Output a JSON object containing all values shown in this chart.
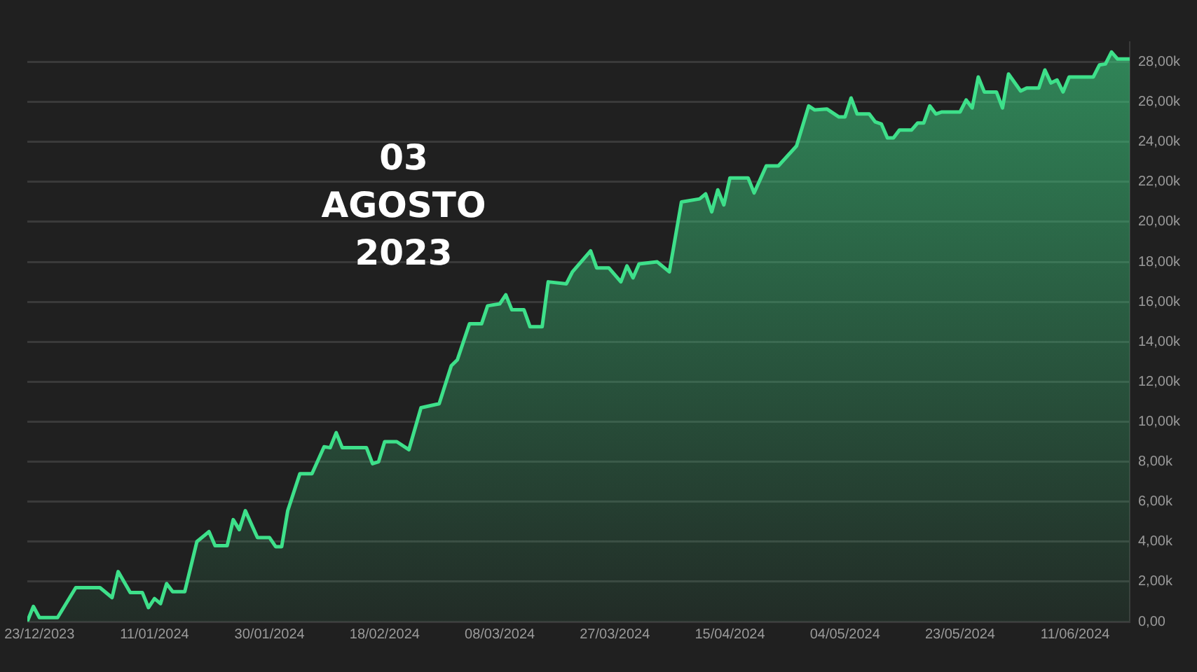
{
  "chart_data": {
    "type": "area",
    "annotations": [
      "03\nAGOSTO\n2023"
    ],
    "x": [
      "2023-12-21",
      "2023-12-22",
      "2023-12-23",
      "2023-12-26",
      "2023-12-29",
      "2024-01-02",
      "2024-01-04",
      "2024-01-05",
      "2024-01-07",
      "2024-01-09",
      "2024-01-10",
      "2024-01-11",
      "2024-01-12",
      "2024-01-13",
      "2024-01-14",
      "2024-01-16",
      "2024-01-18",
      "2024-01-20",
      "2024-01-21",
      "2024-01-23",
      "2024-01-24",
      "2024-01-25",
      "2024-01-26",
      "2024-01-28",
      "2024-01-30",
      "2024-01-31",
      "2024-02-01",
      "2024-02-02",
      "2024-02-04",
      "2024-02-06",
      "2024-02-08",
      "2024-02-09",
      "2024-02-10",
      "2024-02-11",
      "2024-02-15",
      "2024-02-16",
      "2024-02-17",
      "2024-02-18",
      "2024-02-20",
      "2024-02-22",
      "2024-02-24",
      "2024-02-27",
      "2024-02-29",
      "2024-03-01",
      "2024-03-03",
      "2024-03-05",
      "2024-03-06",
      "2024-03-08",
      "2024-03-09",
      "2024-03-10",
      "2024-03-12",
      "2024-03-13",
      "2024-03-15",
      "2024-03-16",
      "2024-03-19",
      "2024-03-20",
      "2024-03-23",
      "2024-03-24",
      "2024-03-26",
      "2024-03-28",
      "2024-03-29",
      "2024-03-30",
      "2024-03-31",
      "2024-04-03",
      "2024-04-05",
      "2024-04-07",
      "2024-04-10",
      "2024-04-11",
      "2024-04-12",
      "2024-04-13",
      "2024-04-14",
      "2024-04-15",
      "2024-04-18",
      "2024-04-19",
      "2024-04-21",
      "2024-04-23",
      "2024-04-26",
      "2024-04-28",
      "2024-04-29",
      "2024-05-01",
      "2024-05-03",
      "2024-05-04",
      "2024-05-05",
      "2024-05-06",
      "2024-05-08",
      "2024-05-09",
      "2024-05-10",
      "2024-05-11",
      "2024-05-12",
      "2024-05-13",
      "2024-05-15",
      "2024-05-16",
      "2024-05-17",
      "2024-05-18",
      "2024-05-19",
      "2024-05-20",
      "2024-05-23",
      "2024-05-24",
      "2024-05-25",
      "2024-05-26",
      "2024-05-27",
      "2024-05-29",
      "2024-05-30",
      "2024-05-31",
      "2024-06-02",
      "2024-06-03",
      "2024-06-05",
      "2024-06-06",
      "2024-06-07",
      "2024-06-08",
      "2024-06-09",
      "2024-06-10",
      "2024-06-14",
      "2024-06-15",
      "2024-06-16",
      "2024-06-17",
      "2024-06-18",
      "2024-06-20"
    ],
    "series": [
      {
        "color": "#3ee08a",
        "values": [
          0,
          760,
          200,
          200,
          1700,
          1700,
          1200,
          2500,
          1450,
          1450,
          700,
          1150,
          900,
          1900,
          1500,
          1500,
          4000,
          4500,
          3800,
          3800,
          5100,
          4600,
          5550,
          4200,
          4200,
          3750,
          3750,
          5550,
          7400,
          7400,
          8750,
          8700,
          9450,
          8700,
          8700,
          7900,
          8000,
          9000,
          9000,
          8600,
          10700,
          10900,
          12800,
          13100,
          14900,
          14900,
          15800,
          15900,
          16350,
          15600,
          15600,
          14750,
          14750,
          17000,
          16900,
          17500,
          18550,
          17700,
          17700,
          17000,
          17800,
          17200,
          17900,
          18000,
          17500,
          21000,
          21150,
          21400,
          20500,
          21600,
          20850,
          22200,
          22200,
          21450,
          22800,
          22800,
          23800,
          25800,
          25600,
          25650,
          25250,
          25250,
          26200,
          25400,
          25400,
          25000,
          24900,
          24200,
          24200,
          24600,
          24600,
          24950,
          24950,
          25800,
          25400,
          25500,
          25500,
          26100,
          25700,
          27250,
          26500,
          26500,
          25700,
          27400,
          26550,
          26700,
          26700,
          27600,
          26950,
          27100,
          26500,
          27250,
          27250,
          27850,
          27900,
          28500,
          28150,
          28150
        ]
      }
    ],
    "xlim": [
      "2023-12-21",
      "2024-06-20"
    ],
    "xticks": [
      {
        "value": "2023-12-23",
        "label": "23/12/2023"
      },
      {
        "value": "2024-01-11",
        "label": "11/01/2024"
      },
      {
        "value": "2024-01-30",
        "label": "30/01/2024"
      },
      {
        "value": "2024-02-18",
        "label": "18/02/2024"
      },
      {
        "value": "2024-03-08",
        "label": "08/03/2024"
      },
      {
        "value": "2024-03-27",
        "label": "27/03/2024"
      },
      {
        "value": "2024-04-15",
        "label": "15/04/2024"
      },
      {
        "value": "2024-05-04",
        "label": "04/05/2024"
      },
      {
        "value": "2024-05-23",
        "label": "23/05/2024"
      },
      {
        "value": "2024-06-11",
        "label": "11/06/2024"
      }
    ],
    "ylim": [
      0,
      29000
    ],
    "yticks": [
      {
        "value": 0,
        "label": "0,00"
      },
      {
        "value": 2000,
        "label": "2,00k"
      },
      {
        "value": 4000,
        "label": "4,00k"
      },
      {
        "value": 6000,
        "label": "6,00k"
      },
      {
        "value": 8000,
        "label": "8,00k"
      },
      {
        "value": 10000,
        "label": "10,00k"
      },
      {
        "value": 12000,
        "label": "12,00k"
      },
      {
        "value": 14000,
        "label": "14,00k"
      },
      {
        "value": 16000,
        "label": "16,00k"
      },
      {
        "value": 18000,
        "label": "18,00k"
      },
      {
        "value": 20000,
        "label": "20,00k"
      },
      {
        "value": 22000,
        "label": "22,00k"
      },
      {
        "value": 24000,
        "label": "24,00k"
      },
      {
        "value": 26000,
        "label": "26,00k"
      },
      {
        "value": 28000,
        "label": "28,00k"
      }
    ],
    "grid": "y",
    "legend": false,
    "marker": "none",
    "line_style": "solid"
  }
}
